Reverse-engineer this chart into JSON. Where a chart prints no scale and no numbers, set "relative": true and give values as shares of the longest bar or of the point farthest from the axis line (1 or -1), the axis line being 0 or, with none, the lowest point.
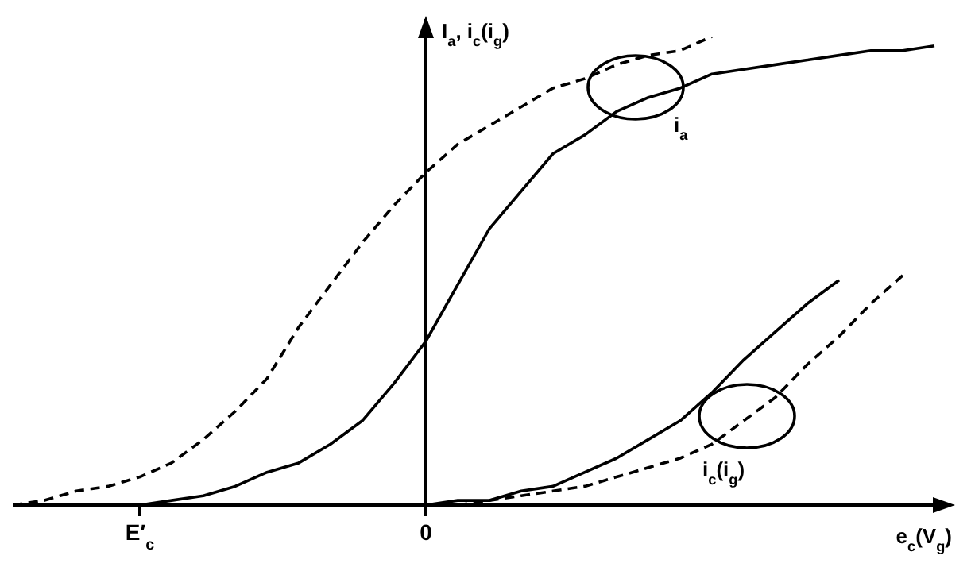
{
  "chart_data": {
    "type": "line",
    "relative": true,
    "ylabel": "I$_{a}$, i$_{c}$(i$_{g}$)",
    "xlabel": "e$_{c}$(V$_{g}$)",
    "categories": [
      null,
      null,
      null,
      null,
      "E′$_{c}$",
      null,
      null,
      null,
      null,
      null,
      null,
      null,
      null,
      "0",
      null,
      null,
      null,
      null,
      null,
      null,
      null,
      null,
      null,
      null,
      null,
      null,
      null,
      null,
      null,
      null
    ],
    "series": [
      {
        "color": "#000000",
        "line_style": "solid",
        "values": [
          null,
          null,
          null,
          null,
          0,
          0.01,
          0.02,
          0.04,
          0.07,
          0.09,
          0.13,
          0.18,
          0.26,
          0.35,
          0.47,
          0.59,
          0.67,
          0.75,
          0.79,
          0.84,
          0.87,
          0.89,
          0.92,
          0.93,
          0.94,
          0.95,
          0.96,
          0.97,
          0.97,
          0.98
        ]
      },
      {
        "color": "#000000",
        "line_style": "dashed",
        "values": [
          0,
          0.01,
          0.03,
          0.04,
          0.06,
          0.09,
          0.14,
          0.2,
          0.27,
          0.38,
          0.47,
          0.56,
          0.64,
          0.71,
          0.77,
          0.81,
          0.85,
          0.89,
          0.91,
          0.94,
          0.96,
          0.97,
          1,
          null,
          null,
          null,
          null,
          null,
          null,
          null
        ]
      },
      {
        "color": "#000000",
        "line_style": "solid",
        "values": [
          null,
          null,
          null,
          null,
          null,
          null,
          null,
          null,
          null,
          null,
          null,
          null,
          null,
          0,
          0.01,
          0.01,
          0.03,
          0.04,
          0.07,
          0.1,
          0.14,
          0.18,
          0.24,
          0.31,
          0.37,
          0.43,
          0.48,
          null,
          null,
          null
        ]
      },
      {
        "color": "#000000",
        "line_style": "dashed",
        "values": [
          null,
          null,
          null,
          null,
          null,
          null,
          null,
          null,
          null,
          null,
          null,
          null,
          null,
          0,
          0,
          0.01,
          0.02,
          0.03,
          0.04,
          0.06,
          0.08,
          0.1,
          0.13,
          0.18,
          0.23,
          0.3,
          0.36,
          0.43,
          0.49,
          null
        ]
      }
    ],
    "annotations": [
      "i$_{a}$",
      "i$_{c}$(i$_{g}$)"
    ]
  }
}
